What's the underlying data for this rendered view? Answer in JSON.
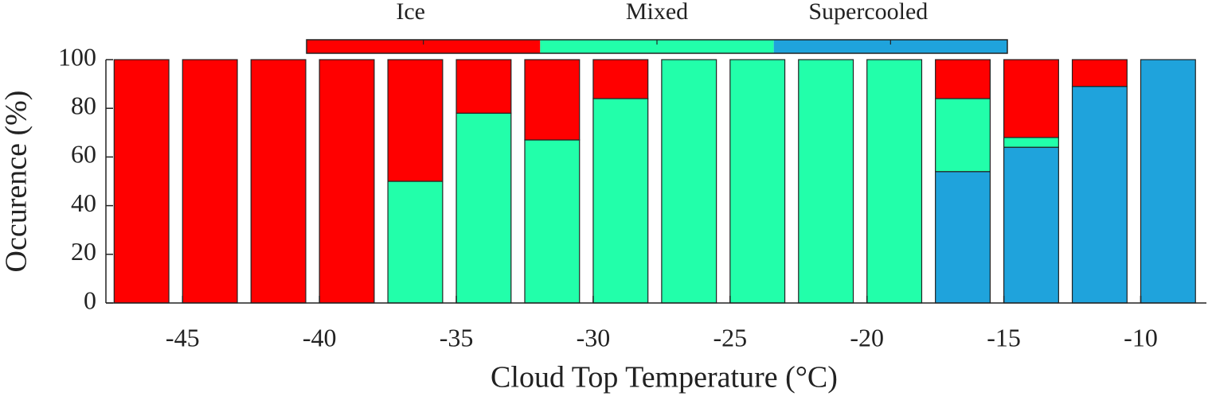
{
  "chart_data": {
    "type": "bar",
    "stacked": true,
    "xlabel": "Cloud Top Temperature (°C)",
    "ylabel": "Occurence (%)",
    "x": [
      -46.5,
      -44,
      -41.5,
      -39,
      -36.5,
      -34,
      -31.5,
      -29,
      -26.5,
      -24,
      -21.5,
      -19,
      -16.5,
      -14,
      -11.5,
      -9
    ],
    "series": [
      {
        "name": "Ice",
        "color": "#ff0000",
        "values": [
          100,
          100,
          100,
          100,
          50,
          22,
          33,
          16,
          0,
          0,
          0,
          0,
          16,
          32,
          11,
          0
        ]
      },
      {
        "name": "Mixed",
        "color": "#22ffaa",
        "values": [
          0,
          0,
          0,
          0,
          50,
          78,
          67,
          84,
          100,
          100,
          100,
          100,
          30,
          4,
          0,
          0
        ]
      },
      {
        "name": "Supercooled",
        "color": "#1fa3dc",
        "values": [
          0,
          0,
          0,
          0,
          0,
          0,
          0,
          0,
          0,
          0,
          0,
          0,
          54,
          64,
          89,
          100
        ]
      }
    ],
    "xlim": [
      -47.8,
      -7.6
    ],
    "xticks": [
      -45,
      -40,
      -35,
      -30,
      -25,
      -20,
      -15,
      -10
    ],
    "ylim": [
      0,
      100
    ],
    "yticks": [
      0,
      20,
      40,
      60,
      80,
      100
    ],
    "legend": "top"
  }
}
